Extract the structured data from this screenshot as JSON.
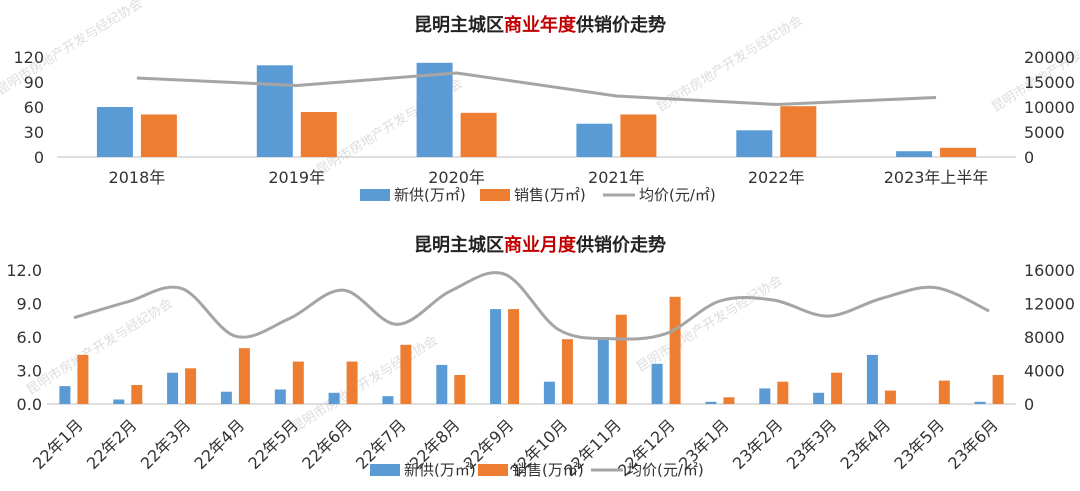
{
  "chart_data": [
    {
      "type": "bar",
      "title_prefix": "昆明主城区",
      "title_highlight": "商业年度",
      "title_suffix": "供销价走势",
      "categories": [
        "2018年",
        "2019年",
        "2020年",
        "2021年",
        "2022年",
        "2023年上半年"
      ],
      "series": [
        {
          "name": "新供(万㎡)",
          "values": [
            60,
            110,
            113,
            40,
            32,
            7
          ],
          "color": "#5b9bd5"
        },
        {
          "name": "销售(万㎡)",
          "values": [
            51,
            54,
            53,
            51,
            61,
            11
          ],
          "color": "#ed7d31"
        },
        {
          "name": "均价(元/㎡)",
          "type": "line",
          "axis": "right",
          "values": [
            15800,
            14300,
            16800,
            12200,
            10500,
            11900
          ],
          "color": "#a5a5a5"
        }
      ],
      "ylim_left": [
        0,
        120
      ],
      "yticks_left": [
        "0",
        "30",
        "60",
        "90",
        "120"
      ],
      "ylim_right": [
        0,
        20000
      ],
      "yticks_right": [
        "0",
        "5000",
        "10000",
        "15000",
        "20000"
      ],
      "legend_position": "bottom"
    },
    {
      "type": "bar",
      "title_prefix": "昆明主城区",
      "title_highlight": "商业月度",
      "title_suffix": "供销价走势",
      "categories": [
        "22年1月",
        "22年2月",
        "22年3月",
        "22年4月",
        "22年5月",
        "22年6月",
        "22年7月",
        "22年8月",
        "22年9月",
        "22年10月",
        "22年11月",
        "22年12月",
        "23年1月",
        "23年2月",
        "23年3月",
        "23年4月",
        "23年5月",
        "23年6月"
      ],
      "series": [
        {
          "name": "新供(万㎡)",
          "values": [
            1.6,
            0.4,
            2.8,
            1.1,
            1.3,
            1.0,
            0.7,
            3.5,
            8.5,
            2.0,
            6.0,
            3.6,
            0.2,
            1.4,
            1.0,
            4.4,
            0.0,
            0.2
          ],
          "color": "#5b9bd5"
        },
        {
          "name": "销售(万㎡)",
          "values": [
            4.4,
            1.7,
            3.2,
            5.0,
            3.8,
            3.8,
            5.3,
            2.6,
            8.5,
            5.8,
            8.0,
            9.6,
            0.6,
            2.0,
            2.8,
            1.2,
            2.1,
            2.6
          ],
          "color": "#ed7d31"
        },
        {
          "name": "均价(元/㎡)",
          "type": "line",
          "axis": "right",
          "values": [
            10300,
            12200,
            13800,
            8100,
            10200,
            13600,
            9500,
            13500,
            15500,
            8900,
            7800,
            8400,
            12300,
            12400,
            10500,
            12600,
            13900,
            11100
          ],
          "color": "#a5a5a5"
        }
      ],
      "ylim_left": [
        0,
        12
      ],
      "yticks_left": [
        "0.0",
        "3.0",
        "6.0",
        "9.0",
        "12.0"
      ],
      "ylim_right": [
        0,
        16000
      ],
      "yticks_right": [
        "0",
        "4000",
        "8000",
        "12000",
        "16000"
      ],
      "legend_position": "bottom"
    }
  ],
  "watermark": "昆明市房地产开发与经纪协会"
}
